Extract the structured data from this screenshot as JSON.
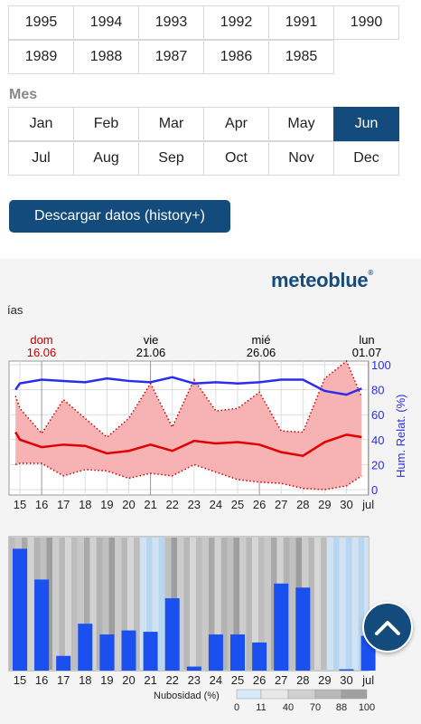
{
  "years": {
    "row1": [
      "1995",
      "1994",
      "1993",
      "1992",
      "1991",
      "1990"
    ],
    "row2": [
      "1989",
      "1988",
      "1987",
      "1986",
      "1985"
    ]
  },
  "month_section_label": "Mes",
  "months": {
    "row1": [
      "Jan",
      "Feb",
      "Mar",
      "Apr",
      "May",
      "Jun"
    ],
    "row2": [
      "Jul",
      "Aug",
      "Sep",
      "Oct",
      "Nov",
      "Dec"
    ],
    "selected": "Jun"
  },
  "download_button": "Descargar datos (history+)",
  "chart_header": {
    "logo": "meteoblue",
    "logo_mark": "®",
    "partial_label": "ías",
    "day_markers": [
      {
        "weekday": "dom",
        "date": "16.06"
      },
      {
        "weekday": "vie",
        "date": "21.06"
      },
      {
        "weekday": "mié",
        "date": "26.06"
      },
      {
        "weekday": "lun",
        "date": "01.07"
      }
    ]
  },
  "chart_data": [
    {
      "type": "area",
      "ylabel": "Hum. Relat. (%)",
      "yticks": [
        "100",
        "80",
        "60",
        "40",
        "20",
        "0"
      ],
      "ylim": [
        0,
        100
      ],
      "categories": [
        "15",
        "16",
        "17",
        "18",
        "19",
        "20",
        "21",
        "22",
        "23",
        "24",
        "25",
        "26",
        "27",
        "28",
        "29",
        "30",
        "jul"
      ],
      "x": [
        14.8,
        15,
        16,
        17,
        18,
        19,
        20,
        21,
        22,
        23,
        24,
        25,
        26,
        27,
        28,
        29,
        30,
        30.7
      ],
      "series": [
        {
          "values": [
            80,
            85,
            88,
            87,
            86,
            89,
            87,
            86,
            90,
            85,
            86,
            85,
            86,
            88,
            88,
            79,
            76,
            81
          ],
          "color": "#2c2cf0"
        },
        {
          "values": [
            46,
            40,
            34,
            36,
            35,
            29,
            31,
            36,
            31,
            39,
            37,
            38,
            36,
            30,
            27,
            38,
            44,
            42
          ],
          "color": "#e00000"
        },
        {
          "values": [
            75,
            65,
            45,
            72,
            57,
            42,
            57,
            85,
            50,
            88,
            63,
            65,
            78,
            47,
            46,
            89,
            103,
            74
          ],
          "color": "#e00000"
        },
        {
          "values": [
            20,
            21,
            21,
            11,
            16,
            15,
            9,
            13,
            11,
            20,
            14,
            8,
            6,
            5,
            1,
            0,
            3,
            11
          ],
          "color": "#e00000"
        }
      ],
      "grid": true
    },
    {
      "type": "bar",
      "categories": [
        "15",
        "16",
        "17",
        "18",
        "19",
        "20",
        "21",
        "22",
        "23",
        "24",
        "25",
        "26",
        "27",
        "28",
        "29",
        "30",
        "jul"
      ],
      "values": [
        91,
        68,
        11,
        35,
        27,
        30,
        29,
        54,
        3,
        27,
        27,
        21,
        65,
        62,
        0,
        1,
        26
      ],
      "color": "#1a50f0",
      "legend_title": "Nubosidad (%)",
      "legend_ticks": [
        "0",
        "11",
        "40",
        "70",
        "88",
        "100"
      ]
    }
  ]
}
